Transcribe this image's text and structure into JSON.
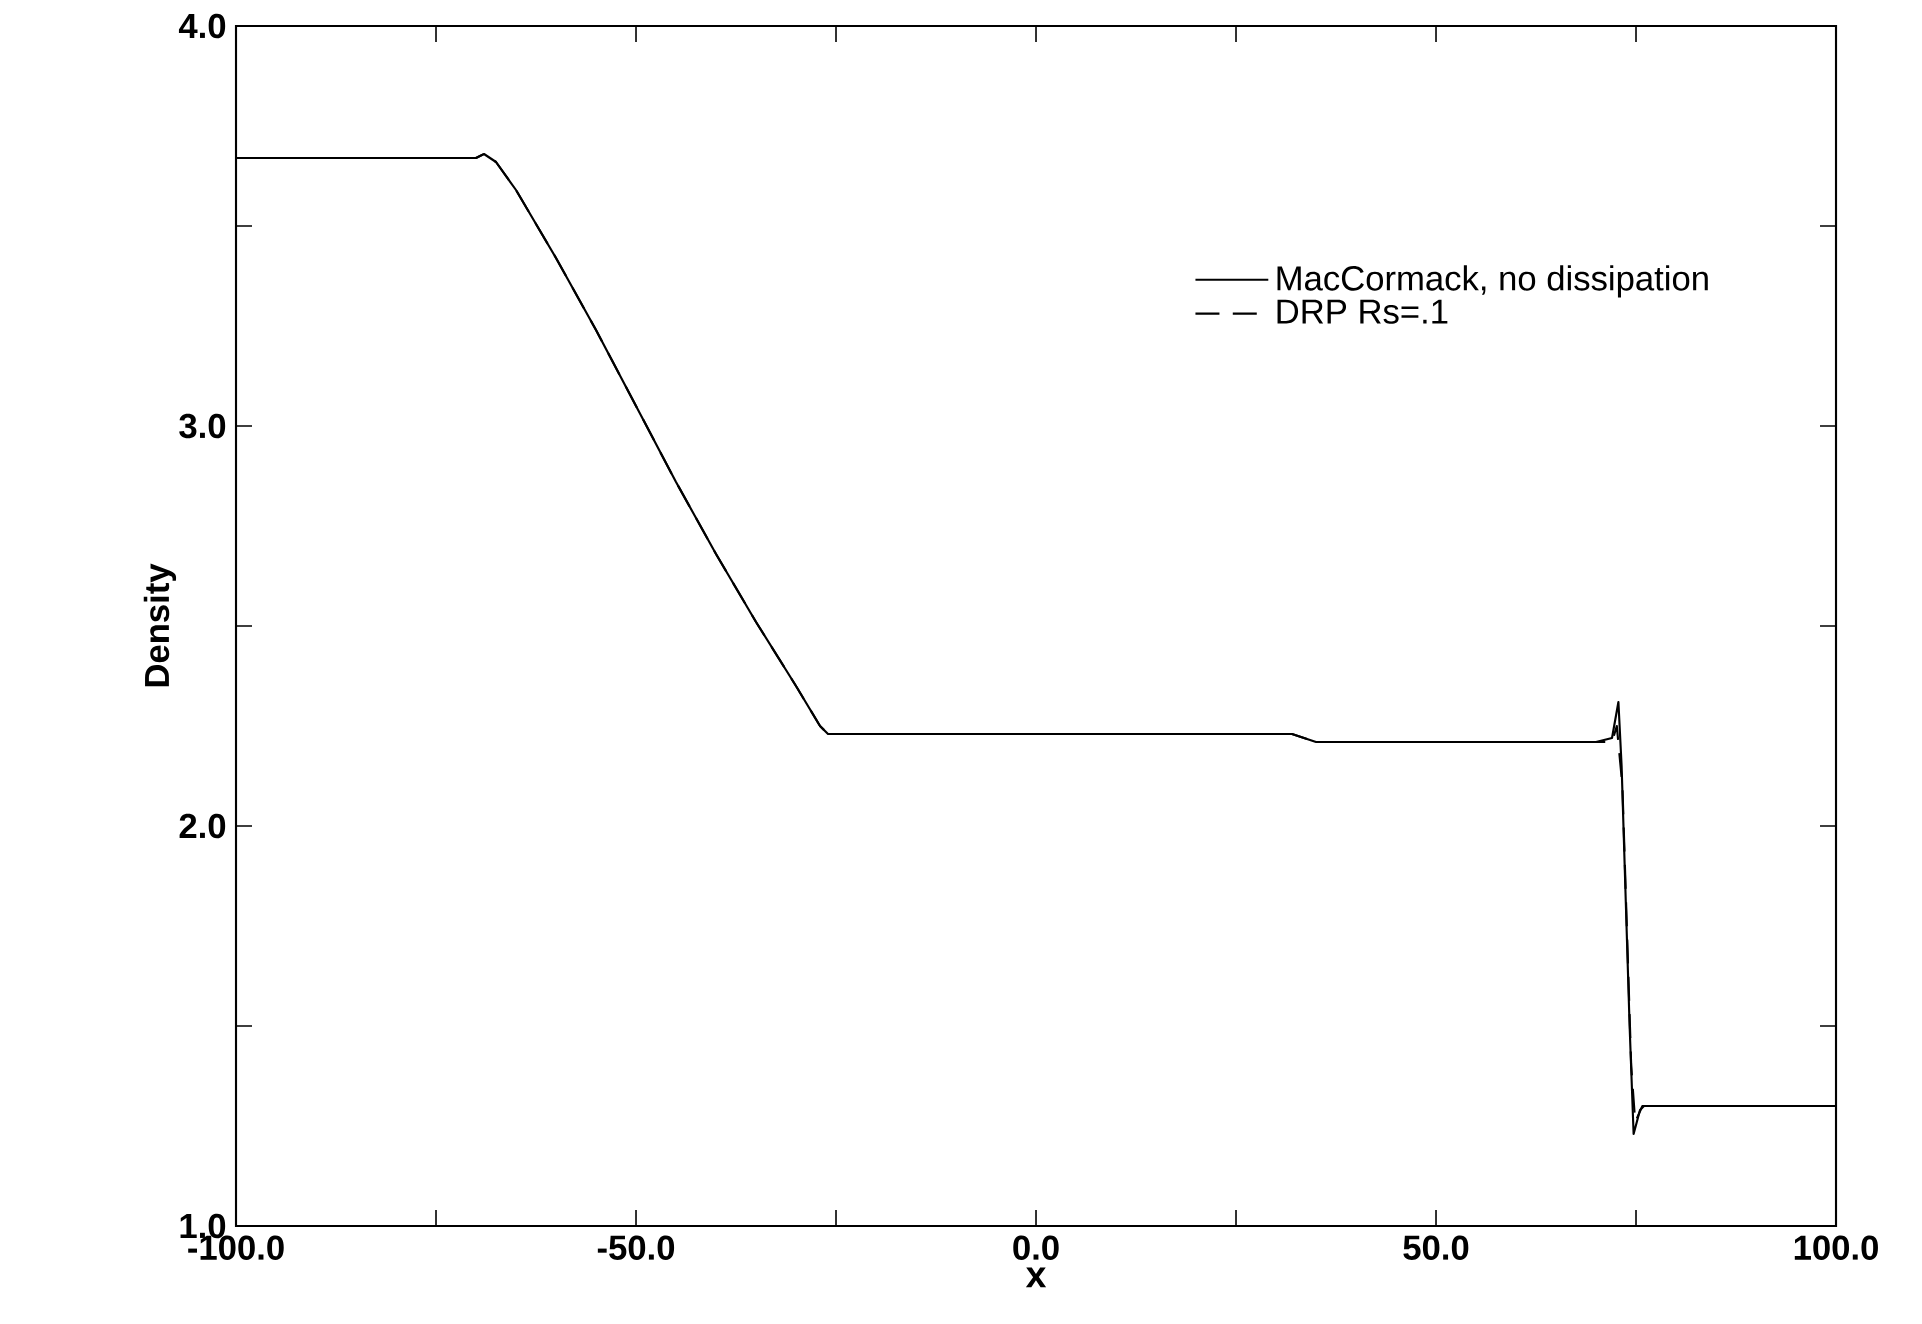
{
  "chart_data": {
    "type": "line",
    "xlabel": "x",
    "ylabel": "Density",
    "xlim": [
      -100,
      100
    ],
    "ylim": [
      1.0,
      4.0
    ],
    "xticks": [
      {
        "value": -100,
        "label": "-100.0"
      },
      {
        "value": -75,
        "label": null
      },
      {
        "value": -50,
        "label": "-50.0"
      },
      {
        "value": -25,
        "label": null
      },
      {
        "value": 0,
        "label": "0.0"
      },
      {
        "value": 25,
        "label": null
      },
      {
        "value": 50,
        "label": "50.0"
      },
      {
        "value": 75,
        "label": null
      },
      {
        "value": 100,
        "label": "100.0"
      }
    ],
    "yticks": [
      {
        "value": 1.0,
        "label": "1.0"
      },
      {
        "value": 1.5,
        "label": null
      },
      {
        "value": 2.0,
        "label": "2.0"
      },
      {
        "value": 2.5,
        "label": null
      },
      {
        "value": 3.0,
        "label": "3.0"
      },
      {
        "value": 3.5,
        "label": null
      },
      {
        "value": 4.0,
        "label": "4.0"
      }
    ],
    "legend": "top right",
    "series": [
      {
        "name": "MacCormack, no dissipation",
        "color": "#000000",
        "line_style": "solid",
        "x": [
          -100,
          -70,
          -69,
          -67.5,
          -65,
          -60,
          -55,
          -50,
          -45,
          -40,
          -35,
          -30,
          -27,
          -26,
          -20,
          0,
          20,
          32,
          33.5,
          35,
          50,
          70,
          72,
          72.8,
          73.2,
          74.2,
          74.7,
          75.5,
          76,
          100
        ],
        "values": [
          3.67,
          3.67,
          3.68,
          3.66,
          3.59,
          3.42,
          3.24,
          3.05,
          2.86,
          2.68,
          2.51,
          2.35,
          2.25,
          2.23,
          2.23,
          2.23,
          2.23,
          2.23,
          2.22,
          2.21,
          2.21,
          2.21,
          2.22,
          2.31,
          2.15,
          1.5,
          1.23,
          1.29,
          1.3,
          1.3
        ]
      },
      {
        "name": "DRP Rs=.1",
        "color": "#000000",
        "line_style": "dashed",
        "x": [
          -100,
          -70,
          -69,
          -67.5,
          -65,
          -60,
          -55,
          -50,
          -45,
          -40,
          -35,
          -30,
          -27,
          -26,
          -20,
          0,
          20,
          32,
          33.5,
          35,
          50,
          70,
          72,
          72.6,
          73.3,
          74.4,
          74.9,
          75.8,
          100
        ],
        "values": [
          3.67,
          3.67,
          3.68,
          3.66,
          3.59,
          3.42,
          3.24,
          3.05,
          2.86,
          2.68,
          2.51,
          2.35,
          2.25,
          2.23,
          2.23,
          2.23,
          2.23,
          2.23,
          2.22,
          2.21,
          2.21,
          2.21,
          2.21,
          2.25,
          2.1,
          1.4,
          1.26,
          1.3,
          1.3
        ]
      }
    ]
  }
}
